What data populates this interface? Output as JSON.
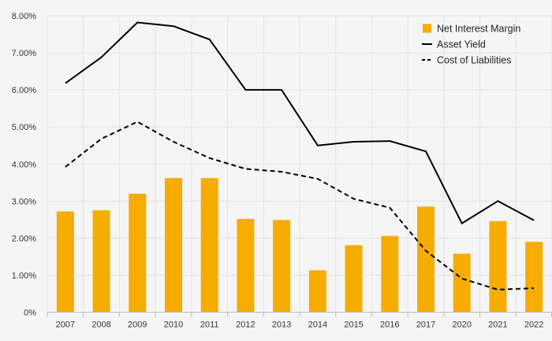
{
  "chart_data": {
    "type": "bar",
    "categories": [
      "2007",
      "2008",
      "2009",
      "2010",
      "2011",
      "2012",
      "2013",
      "2014",
      "2015",
      "2016",
      "2017",
      "2020",
      "2021",
      "2022"
    ],
    "series": [
      {
        "name": "Net Interest Margin",
        "type": "bar",
        "color": "#f7ac00",
        "values": [
          2.72,
          2.75,
          3.2,
          3.62,
          3.62,
          2.52,
          2.49,
          1.13,
          1.81,
          2.06,
          2.85,
          1.58,
          2.46,
          1.9
        ]
      },
      {
        "name": "Asset Yield",
        "type": "line",
        "color": "#000000",
        "dash": "solid",
        "values": [
          6.18,
          6.88,
          7.82,
          7.72,
          7.36,
          6.0,
          6.0,
          4.5,
          4.6,
          4.62,
          4.34,
          2.4,
          3.0,
          2.48
        ]
      },
      {
        "name": "Cost of Liabilities",
        "type": "line",
        "color": "#000000",
        "dash": "dashed",
        "values": [
          3.92,
          4.68,
          5.14,
          4.6,
          4.16,
          3.87,
          3.79,
          3.6,
          3.06,
          2.82,
          1.66,
          0.91,
          0.61,
          0.65
        ]
      }
    ],
    "yticks": [
      "0%",
      "1.00%",
      "2.00%",
      "3.00%",
      "4.00%",
      "5.00%",
      "6.00%",
      "7.00%",
      "8.00%"
    ],
    "ylim": [
      0,
      8
    ],
    "grid": true,
    "legend_position": "top-right",
    "title": "",
    "xlabel": "",
    "ylabel": ""
  }
}
